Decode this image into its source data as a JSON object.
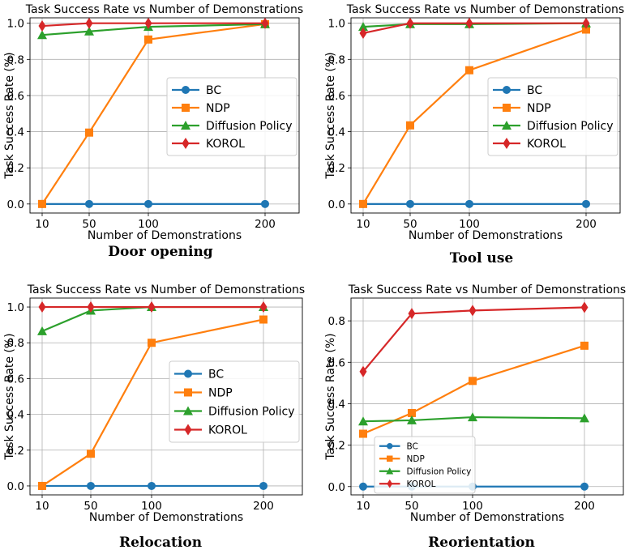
{
  "colors": {
    "BC": "#1f77b4",
    "NDP": "#ff7f0e",
    "Diffusion Policy": "#2ca02c",
    "KOROL": "#d62728"
  },
  "chart_data": [
    {
      "type": "line",
      "title": "Task Success Rate vs Number of Demonstrations",
      "caption": "Door opening",
      "xlabel": "Number of Demonstrations",
      "ylabel": "Task Success Rate (%)",
      "x": [
        10,
        50,
        100,
        200
      ],
      "xticks": [
        "10",
        "50",
        "100",
        "200"
      ],
      "ylim": [
        -0.05,
        1.03
      ],
      "yticks": [
        "0.0",
        "0.2",
        "0.4",
        "0.6",
        "0.8",
        "1.0"
      ],
      "grid": true,
      "legend_position": "center-right",
      "series": [
        {
          "name": "BC",
          "values": [
            0.0,
            0.0,
            0.0,
            0.0
          ],
          "marker": "circle"
        },
        {
          "name": "NDP",
          "values": [
            0.0,
            0.395,
            0.91,
            0.995
          ],
          "marker": "square"
        },
        {
          "name": "Diffusion Policy",
          "values": [
            0.935,
            0.955,
            0.98,
            0.995
          ],
          "marker": "triangle"
        },
        {
          "name": "KOROL",
          "values": [
            0.985,
            1.0,
            1.0,
            1.0
          ],
          "marker": "diamond"
        }
      ]
    },
    {
      "type": "line",
      "title": "Task Success Rate vs Number of Demonstrations",
      "caption": "Tool use",
      "xlabel": "Number of Demonstrations",
      "ylabel": "Task Success Rate (%)",
      "x": [
        10,
        50,
        100,
        200
      ],
      "xticks": [
        "10",
        "50",
        "100",
        "200"
      ],
      "ylim": [
        -0.05,
        1.03
      ],
      "yticks": [
        "0.0",
        "0.2",
        "0.4",
        "0.6",
        "0.8",
        "1.0"
      ],
      "grid": true,
      "legend_position": "center-right",
      "series": [
        {
          "name": "BC",
          "values": [
            0.0,
            0.0,
            0.0,
            0.0
          ],
          "marker": "circle"
        },
        {
          "name": "NDP",
          "values": [
            0.0,
            0.435,
            0.74,
            0.965
          ],
          "marker": "square"
        },
        {
          "name": "Diffusion Policy",
          "values": [
            0.98,
            0.995,
            0.995,
            1.0
          ],
          "marker": "triangle"
        },
        {
          "name": "KOROL",
          "values": [
            0.945,
            1.0,
            1.0,
            1.0
          ],
          "marker": "diamond"
        }
      ]
    },
    {
      "type": "line",
      "title": "Task Success Rate vs Number of Demonstrations",
      "caption": "Relocation",
      "xlabel": "Number of Demonstrations",
      "ylabel": "Task Success Rate (%)",
      "x": [
        10,
        50,
        100,
        200
      ],
      "xticks": [
        "10",
        "50",
        "100",
        "200"
      ],
      "ylim": [
        -0.05,
        1.05
      ],
      "yticks": [
        "0.0",
        "0.2",
        "0.4",
        "0.6",
        "0.8",
        "1.0"
      ],
      "grid": true,
      "legend_position": "center-right",
      "series": [
        {
          "name": "BC",
          "values": [
            0.0,
            0.0,
            0.0,
            0.0
          ],
          "marker": "circle"
        },
        {
          "name": "NDP",
          "values": [
            0.0,
            0.18,
            0.8,
            0.93
          ],
          "marker": "square"
        },
        {
          "name": "Diffusion Policy",
          "values": [
            0.865,
            0.98,
            1.0,
            1.0
          ],
          "marker": "triangle"
        },
        {
          "name": "KOROL",
          "values": [
            1.0,
            1.0,
            1.0,
            1.0
          ],
          "marker": "diamond"
        }
      ]
    },
    {
      "type": "line",
      "title": "Task Success Rate vs Number of Demonstrations",
      "caption": "Reorientation",
      "xlabel": "Number of Demonstrations",
      "ylabel": "Task Success Rate (%)",
      "x": [
        10,
        50,
        100,
        200
      ],
      "xticks": [
        "10",
        "50",
        "100",
        "200"
      ],
      "ylim": [
        -0.04,
        0.91
      ],
      "yticks": [
        "0.0",
        "0.2",
        "0.4",
        "0.6",
        "0.8"
      ],
      "grid": true,
      "legend_position": "lower-left",
      "series": [
        {
          "name": "BC",
          "values": [
            0.0,
            0.0,
            0.0,
            0.0
          ],
          "marker": "circle"
        },
        {
          "name": "NDP",
          "values": [
            0.255,
            0.355,
            0.51,
            0.68
          ],
          "marker": "square"
        },
        {
          "name": "Diffusion Policy",
          "values": [
            0.315,
            0.32,
            0.335,
            0.33
          ],
          "marker": "triangle"
        },
        {
          "name": "KOROL",
          "values": [
            0.555,
            0.835,
            0.85,
            0.865
          ],
          "marker": "diamond"
        }
      ]
    }
  ]
}
